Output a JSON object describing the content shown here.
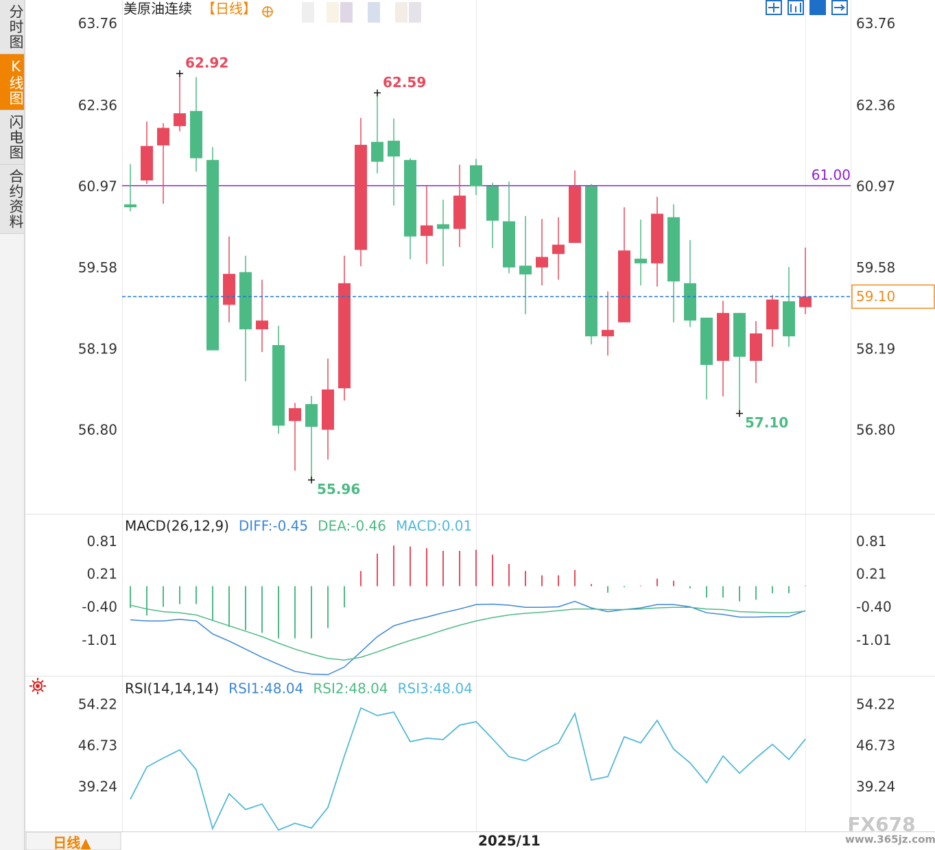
{
  "sidebar": {
    "tabs": [
      "分时图",
      "K线图",
      "闪电图",
      "合约资料"
    ],
    "active": 1
  },
  "bottom_button": "日线▲",
  "watermark": {
    "brand": "FX678",
    "site": "www.365jz.com"
  },
  "chart_data": [
    {
      "type": "candlestick",
      "title": "美原油连续",
      "subtitle": "【日线】",
      "categories": [
        null,
        null,
        null,
        null,
        null,
        null,
        null,
        null,
        null,
        null,
        null,
        null,
        null,
        null,
        null,
        null,
        null,
        null,
        null,
        null,
        null,
        "2025/11",
        null,
        null,
        null,
        null,
        null,
        null,
        null,
        null,
        null,
        null,
        null,
        null,
        null,
        null,
        null,
        null,
        null,
        null,
        null,
        null
      ],
      "open": [
        60.68,
        61.09,
        61.69,
        62.02,
        62.28,
        61.44,
        58.96,
        59.52,
        58.54,
        58.27,
        56.97,
        57.26,
        56.82,
        57.53,
        59.9,
        61.75,
        61.77,
        61.44,
        60.14,
        60.34,
        60.26,
        61.35,
        60.99,
        60.39,
        59.63,
        59.6,
        59.83,
        60.02,
        60.99,
        58.42,
        58.66,
        59.75,
        59.67,
        60.46,
        59.33,
        58.74,
        58.0,
        58.82,
        58.0,
        58.54,
        59.02,
        58.92
      ],
      "high": [
        61.37,
        62.1,
        62.07,
        62.92,
        62.86,
        61.66,
        60.13,
        59.8,
        59.39,
        58.6,
        57.28,
        57.4,
        58.04,
        59.8,
        62.16,
        62.59,
        62.15,
        61.47,
        61.0,
        60.76,
        61.36,
        61.46,
        61.05,
        61.07,
        60.48,
        60.43,
        60.46,
        61.26,
        61.03,
        59.19,
        60.63,
        60.42,
        60.81,
        60.68,
        60.07,
        58.74,
        59.03,
        58.82,
        58.68,
        59.13,
        59.61,
        59.94
      ],
      "low": [
        60.56,
        61.03,
        60.69,
        61.93,
        61.24,
        58.18,
        58.66,
        57.65,
        58.15,
        56.75,
        56.12,
        55.96,
        56.31,
        57.32,
        59.62,
        61.21,
        60.66,
        59.74,
        59.66,
        59.62,
        59.95,
        60.84,
        59.93,
        59.5,
        58.8,
        59.29,
        59.39,
        60.02,
        58.28,
        58.09,
        58.66,
        59.29,
        59.27,
        58.66,
        58.58,
        57.34,
        57.39,
        57.1,
        57.62,
        58.24,
        58.24,
        58.8
      ],
      "close": [
        60.63,
        61.68,
        61.99,
        62.24,
        61.47,
        58.18,
        59.49,
        58.54,
        58.69,
        56.89,
        57.19,
        56.87,
        57.51,
        59.33,
        61.7,
        61.41,
        61.5,
        60.13,
        60.32,
        60.26,
        60.83,
        60.99,
        60.4,
        59.6,
        59.48,
        59.78,
        59.99,
        60.99,
        58.42,
        58.53,
        59.89,
        59.67,
        60.52,
        59.36,
        58.69,
        57.93,
        58.82,
        58.07,
        58.47,
        59.05,
        58.42,
        59.1
      ],
      "up_color": "#e9495c",
      "down_color": "#4cba84",
      "ylim": [
        55.38,
        64.18
      ],
      "yticks": [
        63.76,
        62.36,
        60.97,
        59.58,
        58.19,
        {
          "value": 56.8,
          "label": "56.80"
        }
      ],
      "annotations": [
        {
          "index": 3,
          "value": 62.92,
          "color": "#e9495c"
        },
        {
          "index": 15,
          "value": 62.59,
          "color": "#e9495c"
        },
        {
          "index": 11,
          "value": 55.96,
          "color": "#4cba84"
        },
        {
          "index": 37,
          "value": 57.1,
          "label": "57.10",
          "color": "#4cba84"
        }
      ],
      "hline": {
        "value": 61,
        "label": "61.00",
        "color": "#8a1fd6"
      },
      "last_price": {
        "value": 59.1,
        "label": "59.10",
        "color": "#f08a1c",
        "line_color": "#1e78d4"
      }
    },
    {
      "type": "combo",
      "title": "MACD(26,12,9)",
      "up_color": "#e9495c",
      "down_color": "#4cba84",
      "ylim": [
        -1.65,
        1.32
      ],
      "yticks": [
        0.81,
        0.21,
        {
          "value": -0.4,
          "label": "-0.40"
        },
        -1.01
      ],
      "series": [
        {
          "name": "DIFF:-0.45",
          "color": "#3a86d8",
          "kind": "line",
          "values": [
            -0.62,
            -0.64,
            -0.64,
            -0.61,
            -0.64,
            -0.88,
            -1.01,
            -1.16,
            -1.31,
            -1.44,
            -1.57,
            -1.62,
            -1.63,
            -1.49,
            -1.21,
            -0.93,
            -0.73,
            -0.64,
            -0.57,
            -0.49,
            -0.42,
            -0.34,
            -0.33,
            -0.35,
            -0.39,
            -0.39,
            -0.38,
            -0.28,
            -0.4,
            -0.47,
            -0.43,
            -0.4,
            -0.34,
            -0.34,
            -0.38,
            -0.49,
            -0.52,
            -0.57,
            -0.57,
            -0.56,
            -0.56,
            -0.45
          ]
        },
        {
          "name": "DEA:-0.46",
          "color": "#4cba84",
          "kind": "line",
          "values": [
            -0.35,
            -0.42,
            -0.47,
            -0.49,
            -0.53,
            -0.63,
            -0.73,
            -0.83,
            -0.93,
            -1.05,
            -1.16,
            -1.25,
            -1.33,
            -1.36,
            -1.31,
            -1.21,
            -1.1,
            -1.0,
            -0.91,
            -0.81,
            -0.72,
            -0.64,
            -0.58,
            -0.53,
            -0.5,
            -0.48,
            -0.45,
            -0.42,
            -0.42,
            -0.43,
            -0.43,
            -0.42,
            -0.4,
            -0.39,
            -0.39,
            -0.42,
            -0.43,
            -0.47,
            -0.48,
            -0.49,
            -0.49,
            -0.46
          ]
        },
        {
          "name": "MACD:0.01",
          "color": "#4fb8e0",
          "kind": "bar",
          "values": [
            -0.4,
            -0.54,
            -0.38,
            -0.33,
            -0.33,
            -0.64,
            -0.75,
            -0.81,
            -0.86,
            -0.96,
            -0.96,
            -0.96,
            -0.77,
            -0.39,
            0.28,
            0.6,
            0.75,
            0.73,
            0.7,
            0.65,
            0.65,
            0.67,
            0.58,
            0.41,
            0.28,
            0.2,
            0.2,
            0.3,
            0.04,
            -0.12,
            -0.02,
            0.01,
            0.14,
            0.1,
            -0.04,
            -0.21,
            -0.21,
            -0.28,
            -0.25,
            -0.13,
            -0.13,
            0.01
          ]
        }
      ]
    },
    {
      "type": "line",
      "title": "RSI(14,14,14)",
      "ylim": [
        31.25,
        59.46
      ],
      "yticks": [
        54.22,
        46.73,
        39.24
      ],
      "series": [
        {
          "name": "RSI1:48.04",
          "color": "#3a86d8",
          "values": [
            37.12,
            42.98,
            44.61,
            46.11,
            42.48,
            31.75,
            38.12,
            35.24,
            36.24,
            31.5,
            32.75,
            31.87,
            35.62,
            44.98,
            53.72,
            52.35,
            52.97,
            47.6,
            48.23,
            47.98,
            50.6,
            51.22,
            48.1,
            44.86,
            44.11,
            45.86,
            47.35,
            52.72,
            40.61,
            41.24,
            48.48,
            47.35,
            51.47,
            46.23,
            43.73,
            40.11,
            44.98,
            41.86,
            44.61,
            47.1,
            44.36,
            48.04
          ]
        },
        {
          "name": "RSI2:48.04",
          "color": "#4cba84",
          "values": [
            37.12,
            42.98,
            44.61,
            46.11,
            42.48,
            31.75,
            38.12,
            35.24,
            36.24,
            31.5,
            32.75,
            31.87,
            35.62,
            44.98,
            53.72,
            52.35,
            52.97,
            47.6,
            48.23,
            47.98,
            50.6,
            51.22,
            48.1,
            44.86,
            44.11,
            45.86,
            47.35,
            52.72,
            40.61,
            41.24,
            48.48,
            47.35,
            51.47,
            46.23,
            43.73,
            40.11,
            44.98,
            41.86,
            44.61,
            47.1,
            44.36,
            48.04
          ]
        },
        {
          "name": "RSI3:48.04",
          "color": "#4fb8e0",
          "values": [
            37.12,
            42.98,
            44.61,
            46.11,
            42.48,
            31.75,
            38.12,
            35.24,
            36.24,
            31.5,
            32.75,
            31.87,
            35.62,
            44.98,
            53.72,
            52.35,
            52.97,
            47.6,
            48.23,
            47.98,
            50.6,
            51.22,
            48.1,
            44.86,
            44.11,
            45.86,
            47.35,
            52.72,
            40.61,
            41.24,
            48.48,
            47.35,
            51.47,
            46.23,
            43.73,
            40.11,
            44.98,
            41.86,
            44.61,
            47.1,
            44.36,
            48.04
          ]
        }
      ]
    }
  ]
}
